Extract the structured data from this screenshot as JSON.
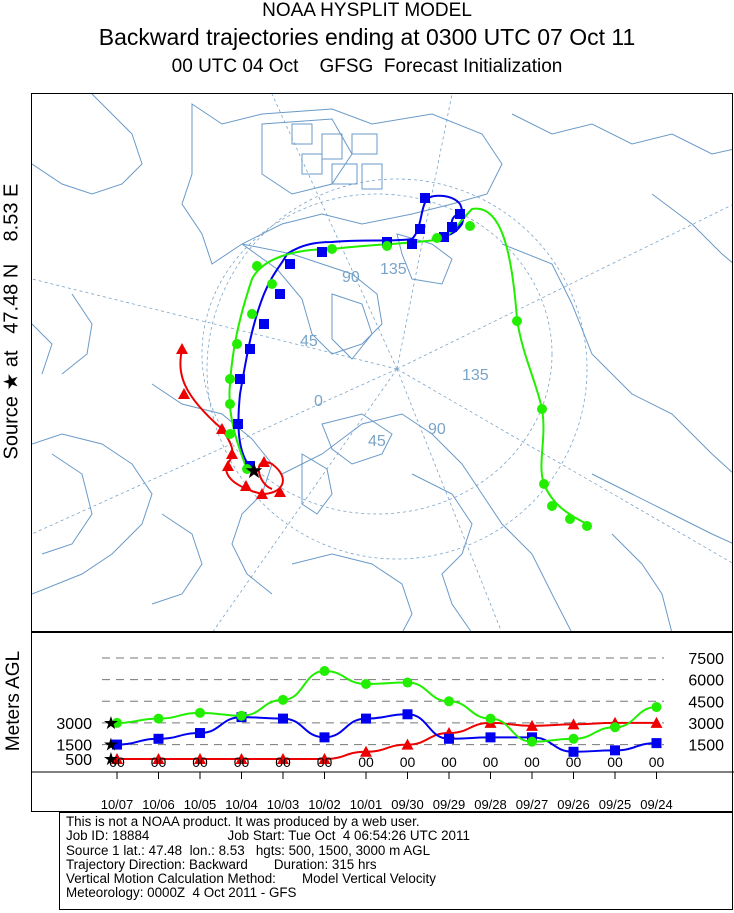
{
  "titles": {
    "line1": "NOAA HYSPLIT MODEL",
    "line2": "Backward trajectories ending at 0300 UTC 07 Oct 11",
    "line3": "00 UTC 04 Oct    GFSG  Forecast Initialization"
  },
  "source_label": "Source ★ at   47.48 N    8.53 E",
  "map": {
    "grid_labels": [
      "90",
      "135",
      "45",
      "135",
      "0",
      "90",
      "45"
    ],
    "colors": {
      "land": "#6a9ac8",
      "grid": "#7aa4c8",
      "red": "#ee0000",
      "blue": "#0000ee",
      "green": "#22ee00"
    }
  },
  "chart_data": {
    "type": "line",
    "ylabel": "Meters AGL",
    "yticks_right": [
      "7500",
      "6000",
      "4500",
      "3000",
      "1500"
    ],
    "yticks_left": [
      "3000",
      "1500",
      "500"
    ],
    "x_hour_labels": [
      "00",
      "00",
      "00",
      "00",
      "00",
      "00",
      "00",
      "00",
      "00",
      "00",
      "00",
      "00",
      "00",
      "00"
    ],
    "x_date_labels": [
      "10/07",
      "10/06",
      "10/05",
      "10/04",
      "10/03",
      "10/02",
      "10/01",
      "09/30",
      "09/29",
      "09/28",
      "09/27",
      "09/26",
      "09/25",
      "09/24"
    ],
    "series": [
      {
        "color": "red",
        "values": [
          500,
          500,
          500,
          500,
          500,
          500,
          1000,
          1500,
          2300,
          3000,
          2800,
          2900,
          3000,
          3000
        ]
      },
      {
        "color": "blue",
        "values": [
          1500,
          1900,
          2300,
          3400,
          3300,
          2000,
          3300,
          3600,
          1900,
          2000,
          2000,
          1000,
          1100,
          1600
        ]
      },
      {
        "color": "green",
        "values": [
          3000,
          3300,
          3700,
          3500,
          4600,
          6600,
          5700,
          5800,
          4500,
          3300,
          1700,
          1900,
          2700,
          4100
        ]
      }
    ]
  },
  "info": {
    "l1": "This is not a NOAA product. It was produced by a web user.",
    "l2": "Job ID: 18884                     Job Start: Tue Oct  4 06:54:26 UTC 2011",
    "l3": "Source 1 lat.: 47.48  lon.: 8.53   hgts: 500, 1500, 3000 m AGL",
    "l4": "Trajectory Direction: Backward       Duration: 315 hrs",
    "l5": "Vertical Motion Calculation Method:       Model Vertical Velocity",
    "l6": "Meteorology: 0000Z  4 Oct 2011 - GFS"
  }
}
